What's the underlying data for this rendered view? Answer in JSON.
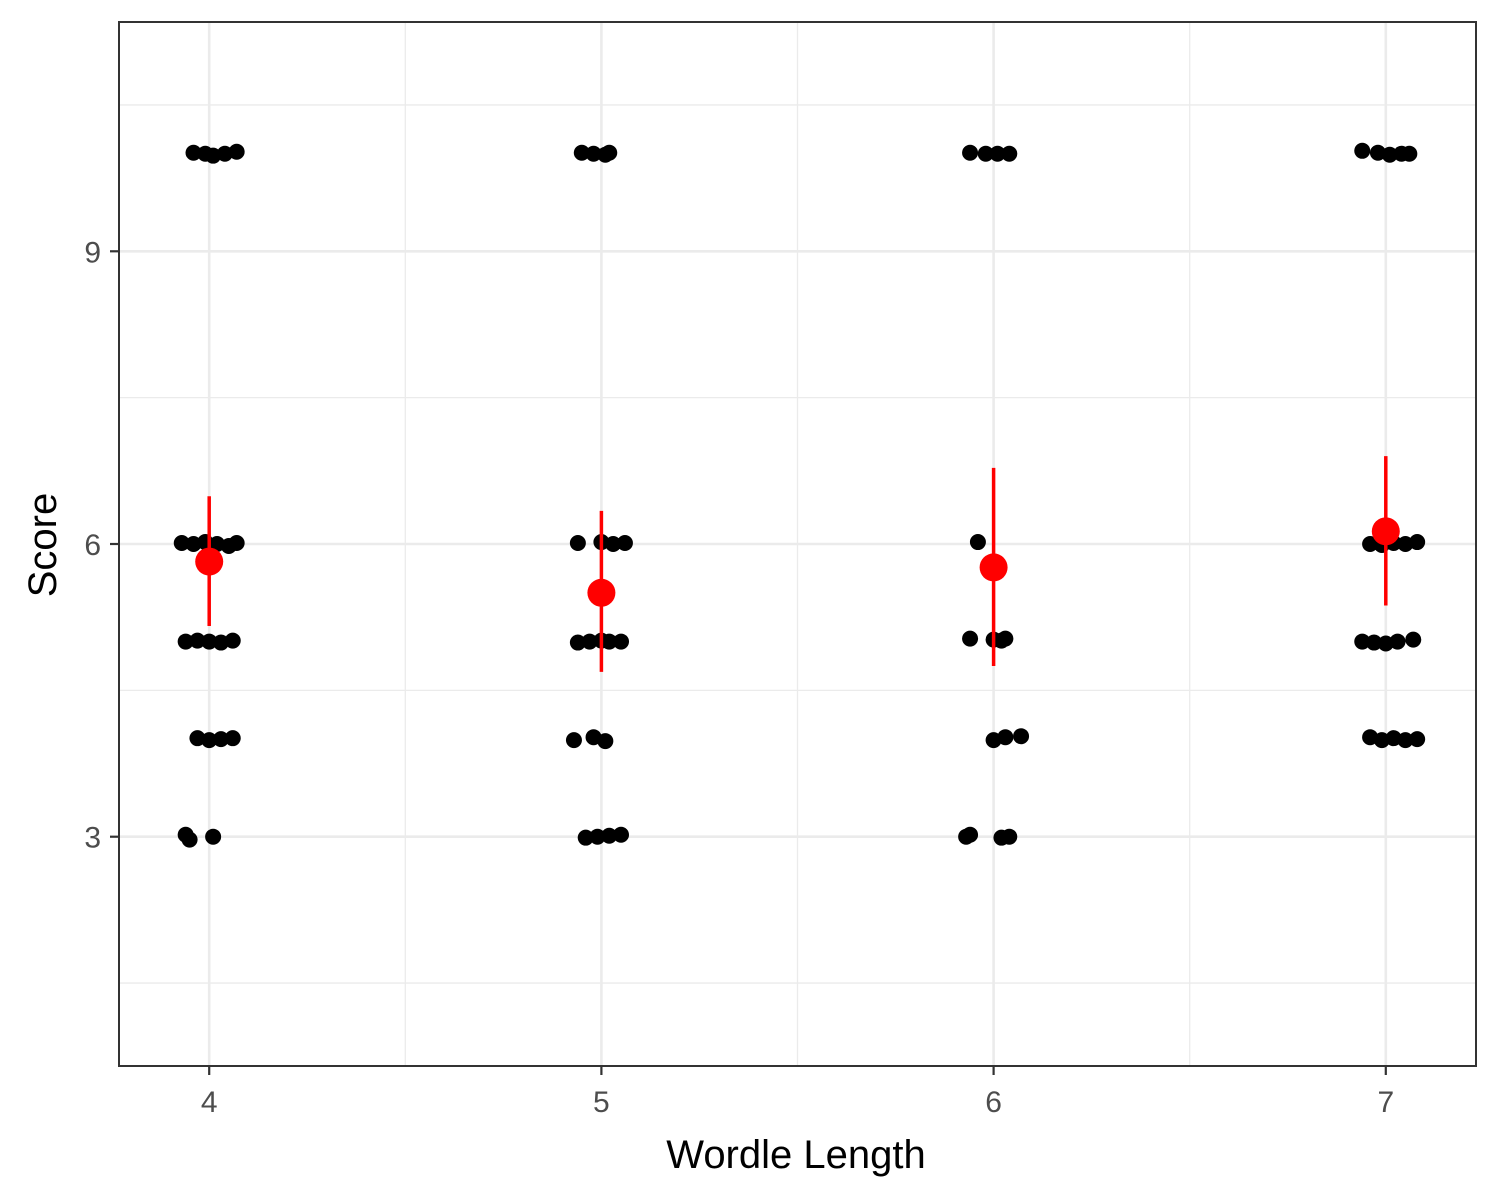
{
  "chart_data": {
    "type": "scatter",
    "title": "",
    "xlabel": "Wordle Length",
    "ylabel": "Score",
    "x_ticks": [
      4,
      5,
      6,
      7
    ],
    "y_ticks": [
      3,
      6,
      9
    ],
    "xlim": [
      3.77,
      7.23
    ],
    "ylim": [
      0.65,
      11.35
    ],
    "grid": true,
    "legend": "none",
    "colors": {
      "points": "#000000",
      "summary": "#ff0000",
      "grid": "#ebebeb",
      "border": "#333333"
    },
    "series": [
      {
        "group": "raw",
        "points": [
          {
            "x": 3.99,
            "y": 10.0
          },
          {
            "x": 4.01,
            "y": 9.98
          },
          {
            "x": 3.96,
            "y": 10.01
          },
          {
            "x": 4.04,
            "y": 10.0
          },
          {
            "x": 4.07,
            "y": 10.02
          },
          {
            "x": 3.93,
            "y": 6.01
          },
          {
            "x": 3.96,
            "y": 6.0
          },
          {
            "x": 3.99,
            "y": 6.02
          },
          {
            "x": 4.02,
            "y": 6.0
          },
          {
            "x": 4.05,
            "y": 5.98
          },
          {
            "x": 4.07,
            "y": 6.01
          },
          {
            "x": 3.94,
            "y": 5.0
          },
          {
            "x": 3.97,
            "y": 5.01
          },
          {
            "x": 4.0,
            "y": 5.0
          },
          {
            "x": 4.03,
            "y": 4.99
          },
          {
            "x": 4.06,
            "y": 5.01
          },
          {
            "x": 3.97,
            "y": 4.01
          },
          {
            "x": 4.0,
            "y": 3.99
          },
          {
            "x": 4.03,
            "y": 4.0
          },
          {
            "x": 4.06,
            "y": 4.01
          },
          {
            "x": 3.94,
            "y": 3.02
          },
          {
            "x": 3.95,
            "y": 2.97
          },
          {
            "x": 4.01,
            "y": 3.0
          },
          {
            "x": 4.95,
            "y": 10.01
          },
          {
            "x": 4.98,
            "y": 10.0
          },
          {
            "x": 5.01,
            "y": 9.99
          },
          {
            "x": 5.02,
            "y": 10.01
          },
          {
            "x": 4.94,
            "y": 6.01
          },
          {
            "x": 5.0,
            "y": 6.02
          },
          {
            "x": 5.03,
            "y": 6.0
          },
          {
            "x": 5.06,
            "y": 6.01
          },
          {
            "x": 4.94,
            "y": 4.99
          },
          {
            "x": 4.97,
            "y": 5.0
          },
          {
            "x": 5.0,
            "y": 5.01
          },
          {
            "x": 5.02,
            "y": 5.0
          },
          {
            "x": 5.05,
            "y": 5.0
          },
          {
            "x": 4.93,
            "y": 3.99
          },
          {
            "x": 4.98,
            "y": 4.02
          },
          {
            "x": 5.01,
            "y": 3.98
          },
          {
            "x": 4.96,
            "y": 2.99
          },
          {
            "x": 4.99,
            "y": 3.0
          },
          {
            "x": 5.02,
            "y": 3.01
          },
          {
            "x": 5.05,
            "y": 3.02
          },
          {
            "x": 5.94,
            "y": 10.01
          },
          {
            "x": 5.98,
            "y": 10.0
          },
          {
            "x": 6.01,
            "y": 10.0
          },
          {
            "x": 6.04,
            "y": 10.0
          },
          {
            "x": 5.96,
            "y": 6.02
          },
          {
            "x": 5.94,
            "y": 5.03
          },
          {
            "x": 6.0,
            "y": 5.02
          },
          {
            "x": 6.02,
            "y": 5.01
          },
          {
            "x": 6.03,
            "y": 5.03
          },
          {
            "x": 6.0,
            "y": 3.99
          },
          {
            "x": 6.03,
            "y": 4.02
          },
          {
            "x": 6.07,
            "y": 4.03
          },
          {
            "x": 5.93,
            "y": 3.0
          },
          {
            "x": 5.94,
            "y": 3.02
          },
          {
            "x": 6.02,
            "y": 2.99
          },
          {
            "x": 6.04,
            "y": 3.0
          },
          {
            "x": 6.94,
            "y": 10.03
          },
          {
            "x": 6.98,
            "y": 10.01
          },
          {
            "x": 7.01,
            "y": 9.99
          },
          {
            "x": 7.04,
            "y": 10.0
          },
          {
            "x": 7.06,
            "y": 10.0
          },
          {
            "x": 6.96,
            "y": 6.0
          },
          {
            "x": 6.99,
            "y": 5.99
          },
          {
            "x": 7.02,
            "y": 6.01
          },
          {
            "x": 7.05,
            "y": 6.0
          },
          {
            "x": 7.08,
            "y": 6.02
          },
          {
            "x": 6.94,
            "y": 5.0
          },
          {
            "x": 6.97,
            "y": 4.99
          },
          {
            "x": 7.0,
            "y": 4.98
          },
          {
            "x": 7.03,
            "y": 5.0
          },
          {
            "x": 7.07,
            "y": 5.02
          },
          {
            "x": 6.96,
            "y": 4.02
          },
          {
            "x": 6.99,
            "y": 3.99
          },
          {
            "x": 7.02,
            "y": 4.01
          },
          {
            "x": 7.05,
            "y": 3.99
          },
          {
            "x": 7.08,
            "y": 4.0
          }
        ]
      },
      {
        "group": "summary",
        "points": [
          {
            "x": 4,
            "y": 5.82,
            "ymin": 5.16,
            "ymax": 6.49
          },
          {
            "x": 5,
            "y": 5.5,
            "ymin": 4.69,
            "ymax": 6.34
          },
          {
            "x": 6,
            "y": 5.76,
            "ymin": 4.75,
            "ymax": 6.78
          },
          {
            "x": 7,
            "y": 6.13,
            "ymin": 5.37,
            "ymax": 6.9
          }
        ]
      }
    ]
  }
}
